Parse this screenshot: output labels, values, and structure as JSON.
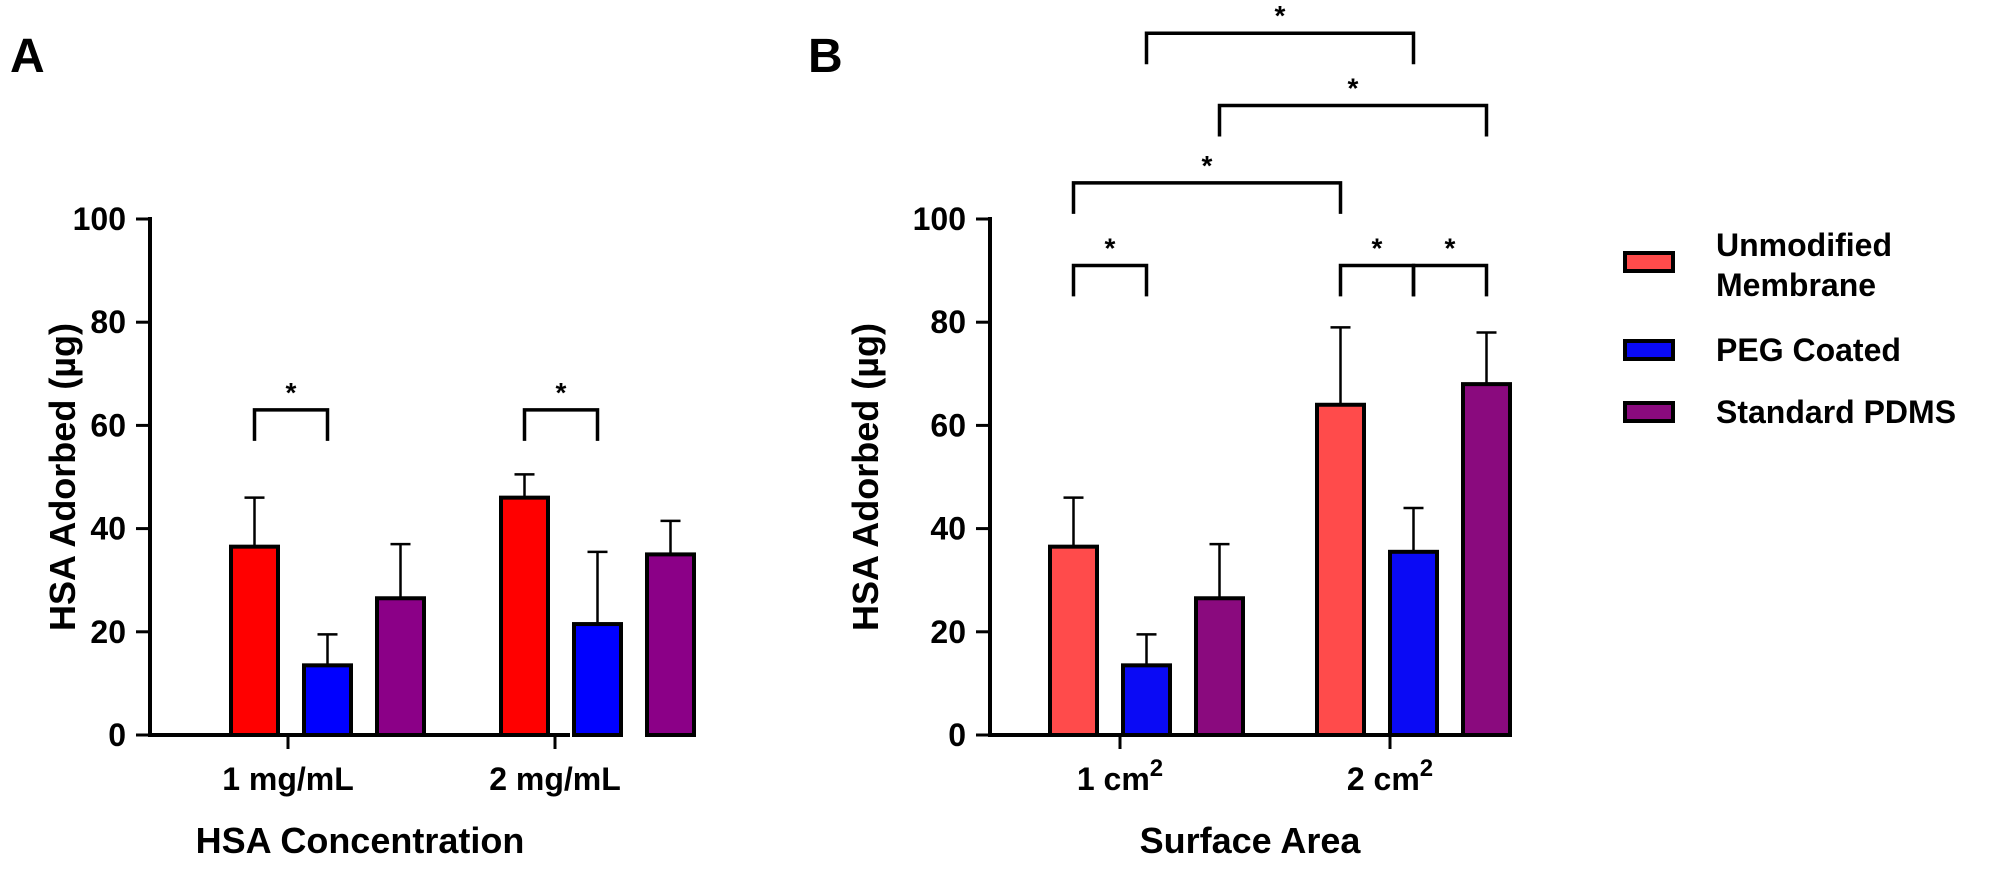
{
  "panels": {
    "a": {
      "letter": "A"
    },
    "b": {
      "letter": "B"
    }
  },
  "legend": {
    "items": [
      {
        "label_lines": [
          "Unmodified",
          "Membrane"
        ],
        "color": "#FF4B4B"
      },
      {
        "label_lines": [
          "PEG Coated"
        ],
        "color": "#0A0AF5"
      },
      {
        "label_lines": [
          "Standard PDMS"
        ],
        "color": "#8A0A7E"
      }
    ]
  },
  "chart_data": [
    {
      "type": "bar",
      "panel": "A",
      "title": "",
      "xlabel": "HSA Concentration",
      "ylabel": "HSA Adorbed (µg)",
      "ylim": [
        0,
        100
      ],
      "yticks": [
        0,
        20,
        40,
        60,
        80,
        100
      ],
      "categories": [
        "1 mg/mL",
        "2 mg/mL"
      ],
      "series": [
        {
          "color": "#FF0000",
          "values": [
            36.5,
            46.0
          ],
          "errors": [
            9.5,
            4.5
          ]
        },
        {
          "color": "#0000FF",
          "values": [
            13.5,
            21.5
          ],
          "errors": [
            6.0,
            14.0
          ]
        },
        {
          "color": "#8B0087",
          "values": [
            26.5,
            35.0
          ],
          "errors": [
            10.5,
            6.5
          ]
        }
      ],
      "significance": [
        {
          "group": 0,
          "from": 0,
          "to": 1,
          "y": 63,
          "drop": 6,
          "label": "*"
        },
        {
          "group": 1,
          "from": 0,
          "to": 1,
          "y": 63,
          "drop": 6,
          "label": "*"
        }
      ]
    },
    {
      "type": "bar",
      "panel": "B",
      "title": "",
      "xlabel": "Surface Area",
      "ylabel": "HSA Adorbed (µg)",
      "ylim": [
        0,
        100
      ],
      "yticks": [
        0,
        20,
        40,
        60,
        80,
        100
      ],
      "categories": [
        {
          "base": "1 cm",
          "sup": "2"
        },
        {
          "base": "2 cm",
          "sup": "2"
        }
      ],
      "series": [
        {
          "color": "#FF4B4B",
          "values": [
            36.5,
            64.0
          ],
          "errors": [
            9.5,
            15.0
          ]
        },
        {
          "color": "#0A0AF5",
          "values": [
            13.5,
            35.5
          ],
          "errors": [
            6.0,
            8.5
          ]
        },
        {
          "color": "#8A0A7E",
          "values": [
            26.5,
            68.0
          ],
          "errors": [
            10.5,
            10.0
          ]
        }
      ],
      "significance": [
        {
          "from_group": 0,
          "from_series": 0,
          "to_group": 0,
          "to_series": 1,
          "y": 91,
          "drop": 6,
          "label": "*"
        },
        {
          "from_group": 1,
          "from_series": 0,
          "to_group": 1,
          "to_series": 1,
          "y": 91,
          "drop": 6,
          "label": "*"
        },
        {
          "from_group": 1,
          "from_series": 1,
          "to_group": 1,
          "to_series": 2,
          "y": 91,
          "drop": 6,
          "label": "*"
        },
        {
          "from_group": 0,
          "from_series": 0,
          "to_group": 1,
          "to_series": 0,
          "y": 107,
          "drop": 6,
          "label": "*"
        },
        {
          "from_group": 0,
          "from_series": 2,
          "to_group": 1,
          "to_series": 2,
          "y": 122,
          "drop": 6,
          "label": "*"
        },
        {
          "from_group": 0,
          "from_series": 1,
          "to_group": 1,
          "to_series": 1,
          "y": 136,
          "drop": 6,
          "label": "*"
        }
      ]
    }
  ]
}
